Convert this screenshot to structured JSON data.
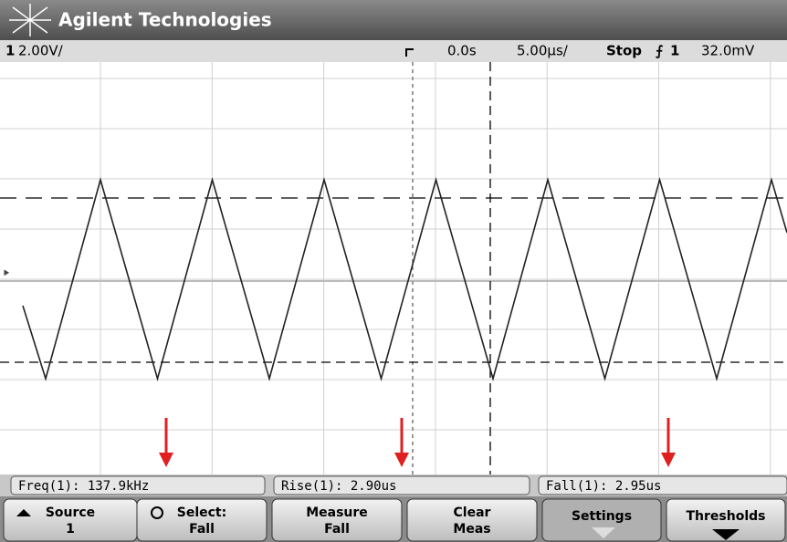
{
  "header": {
    "title": "Agilent Technologies"
  },
  "status": {
    "channel": "1",
    "scale": "2.00V/",
    "delay": "0.0s",
    "timebase": "5.00µs/",
    "run_state": "Stop",
    "trigger_source": "1",
    "trigger_level": "32.0mV"
  },
  "measurements": [
    "Freq(1): 137.9kHz",
    "Rise(1): 2.90us",
    "Fall(1): 2.95us"
  ],
  "softkeys": [
    {
      "line1": "Source",
      "line2": "1"
    },
    {
      "line1": "Select:",
      "line2": "Fall"
    },
    {
      "line1": "Measure",
      "line2": "Fall"
    },
    {
      "line1": "Clear",
      "line2": "Meas"
    },
    {
      "line1": "Settings"
    },
    {
      "line1": "Thresholds"
    }
  ]
}
